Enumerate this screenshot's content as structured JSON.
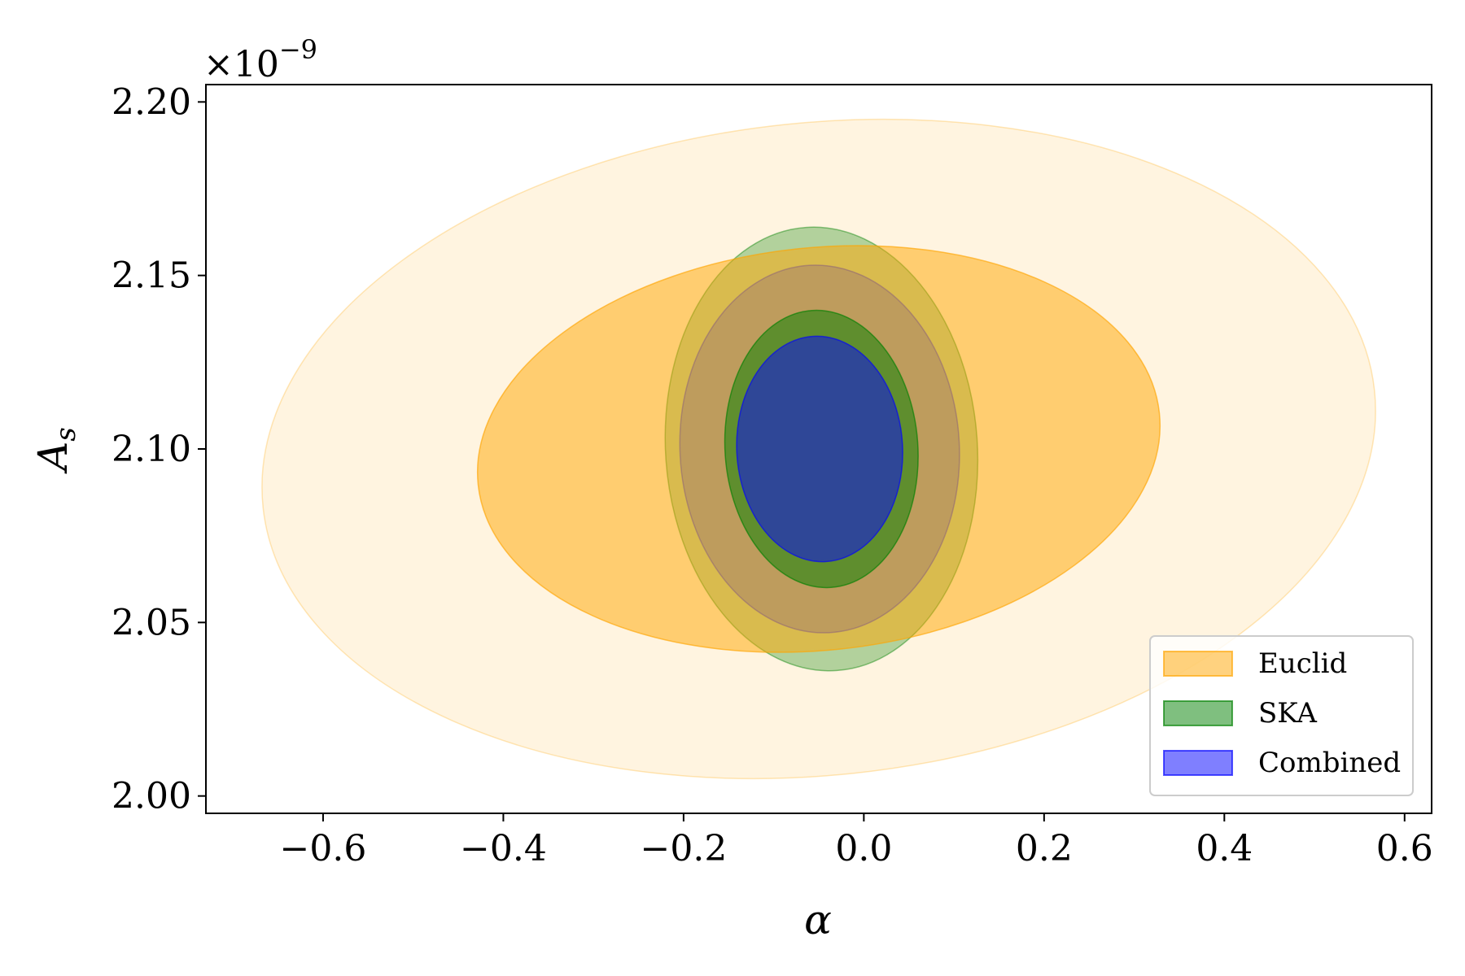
{
  "chart_data": {
    "type": "contour",
    "title": "",
    "xlabel": "α",
    "ylabel": "A",
    "ylabel_sub": "s",
    "y_multiplier": "×10",
    "y_multiplier_exp": "−9",
    "xlim": [
      -0.73,
      0.63
    ],
    "ylim": [
      1.995,
      2.205
    ],
    "x_ticks": [
      -0.6,
      -0.4,
      -0.2,
      0.0,
      0.2,
      0.4,
      0.6
    ],
    "x_tick_labels": [
      "−0.6",
      "−0.4",
      "−0.2",
      "0.0",
      "0.2",
      "0.4",
      "0.6"
    ],
    "y_ticks": [
      2.0,
      2.05,
      2.1,
      2.15,
      2.2
    ],
    "y_tick_labels": [
      "2.00",
      "2.05",
      "2.10",
      "2.15",
      "2.20"
    ],
    "grid": false,
    "legend_position": "lower-right",
    "series": [
      {
        "name": "Euclid",
        "color": "#ffa500",
        "contours": [
          {
            "level": "2-sigma",
            "center": [
              -0.05,
              2.1
            ],
            "half_width": 0.62,
            "half_height": 0.094,
            "tilt_deg": -6,
            "opacity": 0.12
          },
          {
            "level": "1-sigma",
            "center": [
              -0.05,
              2.1
            ],
            "half_width": 0.38,
            "half_height": 0.058,
            "tilt_deg": -6,
            "opacity": 0.5
          }
        ]
      },
      {
        "name": "SKA",
        "color": "#008000",
        "contours": [
          {
            "level": "2-sigma",
            "center": [
              -0.047,
              2.1
            ],
            "half_width": 0.173,
            "half_height": 0.064,
            "tilt_deg": -4,
            "opacity": 0.3
          },
          {
            "level": "1-sigma",
            "center": [
              -0.047,
              2.1
            ],
            "half_width": 0.107,
            "half_height": 0.04,
            "tilt_deg": -4,
            "opacity": 0.5
          }
        ]
      },
      {
        "name": "Combined",
        "color": "#0000ff",
        "contours": [
          {
            "level": "2-sigma",
            "center": [
              -0.049,
              2.1
            ],
            "half_width": 0.155,
            "half_height": 0.053,
            "tilt_deg": -3,
            "opacity": 0.3
          },
          {
            "level": "1-sigma",
            "center": [
              -0.049,
              2.1
            ],
            "half_width": 0.092,
            "half_height": 0.0325,
            "tilt_deg": -3,
            "opacity": 0.5
          }
        ]
      }
    ]
  }
}
